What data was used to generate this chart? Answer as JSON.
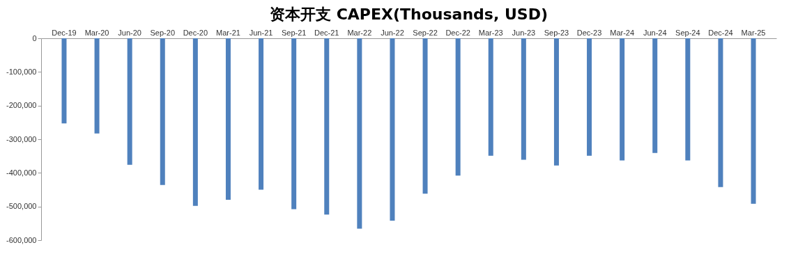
{
  "chart_data": {
    "type": "bar",
    "title": "资本开支 CAPEX(Thousands, USD)",
    "categories": [
      "Dec-19",
      "Mar-20",
      "Jun-20",
      "Sep-20",
      "Dec-20",
      "Mar-21",
      "Jun-21",
      "Sep-21",
      "Dec-21",
      "Mar-22",
      "Jun-22",
      "Sep-22",
      "Dec-22",
      "Mar-23",
      "Jun-23",
      "Sep-23",
      "Dec-23",
      "Mar-24",
      "Jun-24",
      "Sep-24",
      "Dec-24",
      "Mar-25"
    ],
    "values": [
      -253000,
      -283000,
      -376000,
      -436000,
      -498000,
      -480000,
      -450000,
      -508000,
      -524000,
      -566000,
      -542000,
      -462000,
      -408000,
      -349000,
      -361000,
      -378000,
      -349000,
      -363000,
      -341000,
      -363000,
      -442000,
      -492000
    ],
    "color": "#4f81bd",
    "ylim": [
      -600000,
      0
    ],
    "yticks": [
      0,
      {
        "value": -100000,
        "label": "-100,000"
      },
      {
        "value": -200000,
        "label": "-200,000"
      },
      {
        "value": -300000,
        "label": "-300,000"
      },
      {
        "value": -400000,
        "label": "-400,000"
      },
      {
        "value": -500000,
        "label": "-500,000"
      },
      {
        "value": -600000,
        "label": "-600,000"
      }
    ],
    "grid": false
  }
}
